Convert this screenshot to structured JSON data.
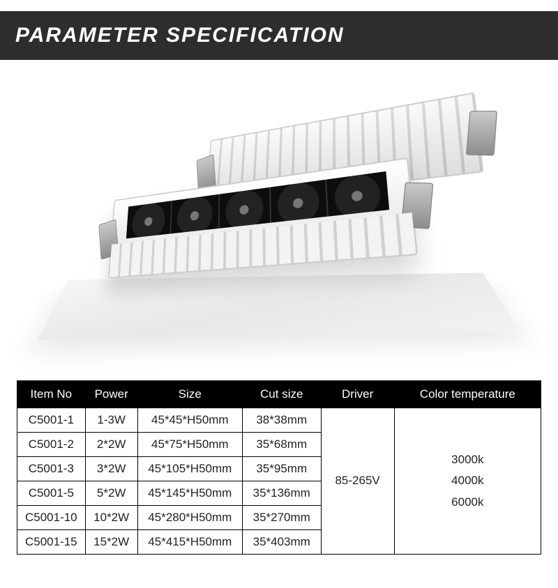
{
  "header": {
    "title": "PARAMETER SPECIFICATION",
    "bg_color": "#2d2d2d",
    "text_color": "#ffffff",
    "font_weight": 900,
    "font_style": "italic",
    "font_size_pt": 22
  },
  "product_image": {
    "type": "infographic",
    "description": "Two white linear recessed LED downlight fixtures with black anti-glare cells and metal spring clips, resting on a light grey platform",
    "platform_color": "#efefef",
    "fixture_body_color": "#ffffff",
    "inset_color": "#1b1b1b",
    "cell_count": 5,
    "fin_color_light": "#f3f3f3",
    "fin_color_dark": "#d0d0d0",
    "clip_color": "#9a9a9a"
  },
  "table": {
    "type": "table",
    "header_bg": "#000000",
    "header_text_color": "#ffffff",
    "cell_border_color": "#000000",
    "cell_bg": "#ffffff",
    "cell_text_color": "#222222",
    "font_size_pt": 13,
    "columns": [
      {
        "key": "item_no",
        "label": "Item No",
        "width_pct": 13,
        "align": "center"
      },
      {
        "key": "power",
        "label": "Power",
        "width_pct": 10,
        "align": "center"
      },
      {
        "key": "size",
        "label": "Size",
        "width_pct": 20,
        "align": "center"
      },
      {
        "key": "cut_size",
        "label": "Cut size",
        "width_pct": 15,
        "align": "center"
      },
      {
        "key": "driver",
        "label": "Driver",
        "width_pct": 14,
        "align": "center"
      },
      {
        "key": "color_temp",
        "label": "Color temperature",
        "width_pct": 28,
        "align": "center"
      }
    ],
    "rows": [
      {
        "item_no": "C5001-1",
        "power": "1-3W",
        "size": "45*45*H50mm",
        "cut_size": "38*38mm"
      },
      {
        "item_no": "C5001-2",
        "power": "2*2W",
        "size": "45*75*H50mm",
        "cut_size": "35*68mm"
      },
      {
        "item_no": "C5001-3",
        "power": "3*2W",
        "size": "45*105*H50mm",
        "cut_size": "35*95mm"
      },
      {
        "item_no": "C5001-5",
        "power": "5*2W",
        "size": "45*145*H50mm",
        "cut_size": "35*136mm"
      },
      {
        "item_no": "C5001-10",
        "power": "10*2W",
        "size": "45*280*H50mm",
        "cut_size": "35*270mm"
      },
      {
        "item_no": "C5001-15",
        "power": "15*2W",
        "size": "45*415*H50mm",
        "cut_size": "35*403mm"
      }
    ],
    "driver_merged": "85-265V",
    "color_temp_merged_lines": [
      "3000k",
      "4000k",
      "6000k"
    ],
    "color_temp_merged": "3000k\n4000k\n6000k"
  }
}
